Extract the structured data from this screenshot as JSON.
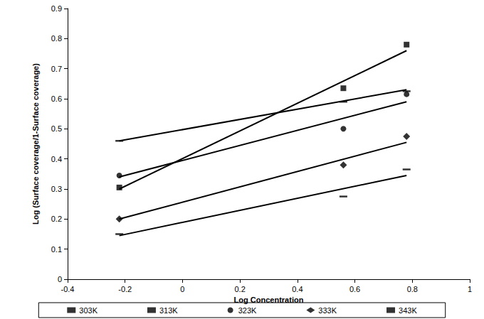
{
  "chart_data": {
    "type": "scatter",
    "x_label": "Log Concentration",
    "y_label": "Log (Surface coverage/1-Surface coverage)",
    "x": [
      -0.22,
      0.56,
      0.78
    ],
    "fit_x": [
      -0.22,
      0.78
    ],
    "series": [
      {
        "name": "303K",
        "color": "#000000",
        "marker": "dash",
        "values": [
          0.46,
          0.59,
          0.625
        ],
        "fit_values": [
          0.46,
          0.63
        ]
      },
      {
        "name": "313K",
        "color": "#000000",
        "marker": "square",
        "values": [
          0.305,
          0.635,
          0.78
        ],
        "fit_values": [
          0.3,
          0.76
        ]
      },
      {
        "name": "323K",
        "color": "#000000",
        "marker": "circle",
        "values": [
          0.345,
          0.5,
          0.615
        ],
        "fit_values": [
          0.34,
          0.59
        ]
      },
      {
        "name": "333K",
        "color": "#000000",
        "marker": "diamond",
        "values": [
          0.2,
          0.38,
          0.475
        ],
        "fit_values": [
          0.2,
          0.455
        ]
      },
      {
        "name": "343K",
        "color": "#000000",
        "marker": "dash",
        "values": [
          0.15,
          0.275,
          0.365
        ],
        "fit_values": [
          0.145,
          0.345
        ]
      }
    ],
    "xlim": [
      -0.4,
      1
    ],
    "xticks": [
      -0.4,
      -0.2,
      0,
      0.2,
      0.4,
      0.6,
      0.8,
      1
    ],
    "ylim": [
      0,
      0.9
    ],
    "yticks": [
      0,
      0.1,
      0.2,
      0.3,
      0.4,
      0.5,
      0.6,
      0.7,
      0.8,
      0.9
    ],
    "grid": false,
    "legend": "bottom",
    "line_style": "solid"
  }
}
